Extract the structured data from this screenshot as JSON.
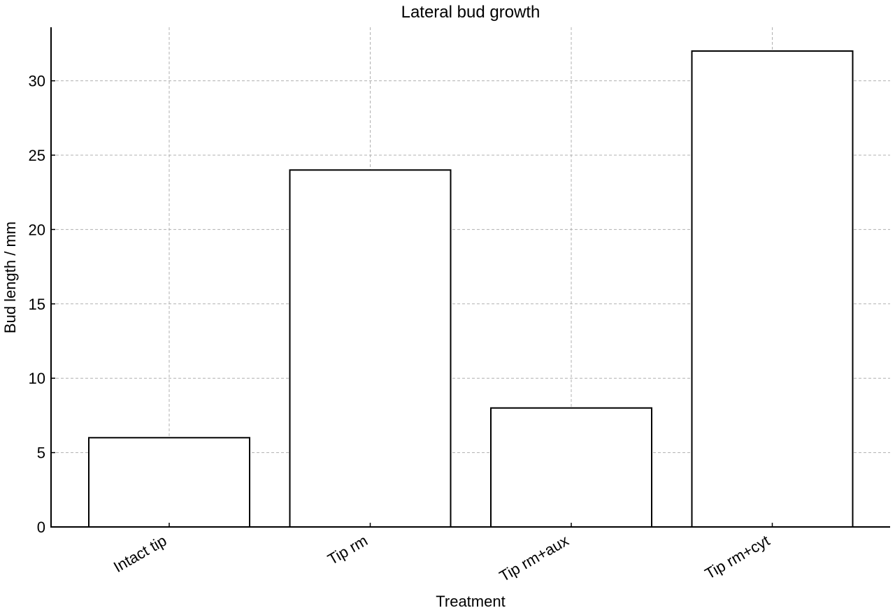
{
  "chart_data": {
    "type": "bar",
    "title": "Lateral bud growth",
    "xlabel": "Treatment",
    "ylabel": "Bud length / mm",
    "categories": [
      "Intact tip",
      "Tip rm",
      "Tip rm+aux",
      "Tip rm+cyt"
    ],
    "values": [
      6,
      24,
      8,
      32
    ],
    "ylim": [
      0,
      33.6
    ],
    "yticks": [
      0,
      5,
      10,
      15,
      20,
      25,
      30
    ],
    "grid": true,
    "legend": "none",
    "colors": {
      "bar_fill": "#ffffff",
      "bar_edge": "#000000",
      "grid": "#b0b0b0"
    }
  }
}
